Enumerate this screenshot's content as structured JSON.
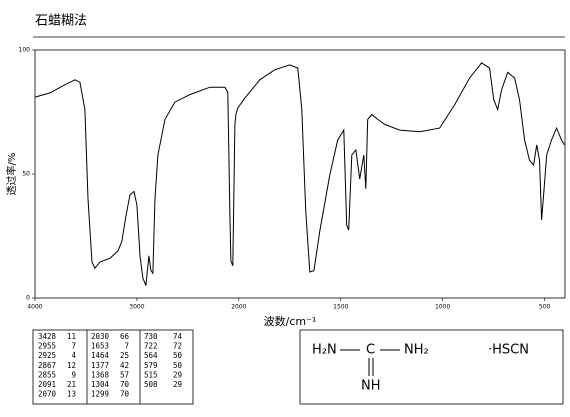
{
  "header": {
    "title": "石蜡糊法"
  },
  "chart_data": {
    "type": "line",
    "xlabel": "波数/cm⁻¹",
    "ylabel": "透过率/%",
    "xlim": [
      4000,
      400
    ],
    "xticks": [
      4000,
      3000,
      2000,
      1500,
      1000,
      500
    ],
    "ylim": [
      0,
      100
    ],
    "yticks": [
      0,
      50,
      100
    ],
    "color": "#000000",
    "x": [
      4000,
      3853,
      3706,
      3608,
      3559,
      3510,
      3480,
      3441,
      3412,
      3363,
      3265,
      3186,
      3147,
      3108,
      3069,
      3029,
      3000,
      2970,
      2941,
      2912,
      2882,
      2863,
      2843,
      2824,
      2794,
      2725,
      2627,
      2480,
      2284,
      2137,
      2108,
      2088,
      2078,
      2059,
      2039,
      2029,
      2010,
      1971,
      1897,
      1824,
      1750,
      1711,
      1691,
      1672,
      1652,
      1632,
      1603,
      1554,
      1515,
      1485,
      1471,
      1461,
      1446,
      1426,
      1407,
      1387,
      1377,
      1368,
      1348,
      1319,
      1284,
      1211,
      1113,
      1015,
      941,
      868,
      809,
      770,
      750,
      730,
      711,
      681,
      647,
      623,
      598,
      574,
      554,
      539,
      525,
      515,
      505,
      490,
      466,
      441,
      417,
      402
    ],
    "values": [
      81,
      82.7,
      86,
      88,
      87,
      76,
      40,
      14.5,
      12,
      14.5,
      16,
      19,
      23,
      33,
      41.5,
      43,
      37.5,
      17,
      8,
      5,
      17,
      11,
      10,
      39.5,
      57.7,
      72,
      79,
      82,
      85,
      85,
      83,
      33.5,
      15,
      13,
      70,
      74,
      76.6,
      80.6,
      88,
      92,
      94,
      92.7,
      76,
      35.5,
      10.5,
      11,
      27,
      49.6,
      63.7,
      67.7,
      29.4,
      27.4,
      57.7,
      59.7,
      48,
      57.7,
      44,
      72,
      74,
      72,
      70,
      67.7,
      67,
      68.5,
      78,
      88.7,
      94.8,
      92.7,
      80,
      76,
      84,
      91,
      88.7,
      80,
      63.7,
      55.6,
      53.6,
      61.7,
      55.6,
      31.5,
      41.5,
      57.7,
      63.7,
      68.5,
      63.7,
      61.7
    ]
  },
  "peak_table": {
    "rows": [
      [
        3428,
        11,
        2030,
        66,
        730,
        74
      ],
      [
        2955,
        7,
        1653,
        7,
        722,
        72
      ],
      [
        2925,
        4,
        1464,
        25,
        564,
        50
      ],
      [
        2867,
        12,
        1377,
        42,
        579,
        50
      ],
      [
        2855,
        9,
        1368,
        57,
        515,
        29
      ],
      [
        2091,
        21,
        1304,
        70,
        508,
        29
      ],
      [
        2070,
        13,
        1299,
        70
      ]
    ]
  },
  "structure": {
    "left": "H₂N",
    "center": "C",
    "right": "NH₂",
    "bottom": "NH",
    "salt": "·HSCN"
  }
}
